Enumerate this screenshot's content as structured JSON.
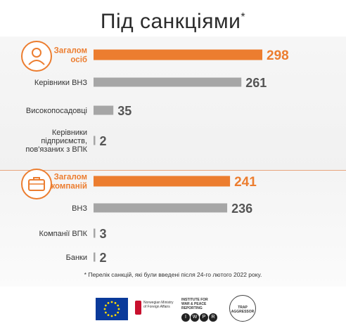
{
  "title": {
    "text": "Під санкціями",
    "mark": "*"
  },
  "chart_data": [
    {
      "type": "bar",
      "categories": [
        "Загалом осіб",
        "Керівники ВНЗ",
        "Високопосадовці",
        "Керівники підприємств, пов'язаних з ВПК"
      ],
      "values": [
        298,
        261,
        35,
        2
      ],
      "highlight_color": "#ec7d2f",
      "bar_color": "#a6a6a6"
    },
    {
      "type": "bar",
      "categories": [
        "Загалом компаній",
        "ВНЗ",
        "Компанії ВПК",
        "Банки"
      ],
      "values": [
        241,
        236,
        3,
        2
      ],
      "highlight_color": "#ec7d2f",
      "bar_color": "#a6a6a6"
    }
  ],
  "icons": {
    "people": "person-icon",
    "companies": "briefcase-icon"
  },
  "footnote": "* Перелік санкцій, які були введені після 24-го лютого 2022 року.",
  "logos": {
    "mfa_text": [
      "Norwegian Ministry",
      "of Foreign Affairs"
    ],
    "iwpr_text": [
      "INSTITUTE FOR",
      "WAR & PEACE REPORTING"
    ],
    "iwpr_letters": [
      "I",
      "W",
      "P",
      "R"
    ],
    "trap_text": [
      "TRAP",
      "AGGRESSOR"
    ]
  }
}
